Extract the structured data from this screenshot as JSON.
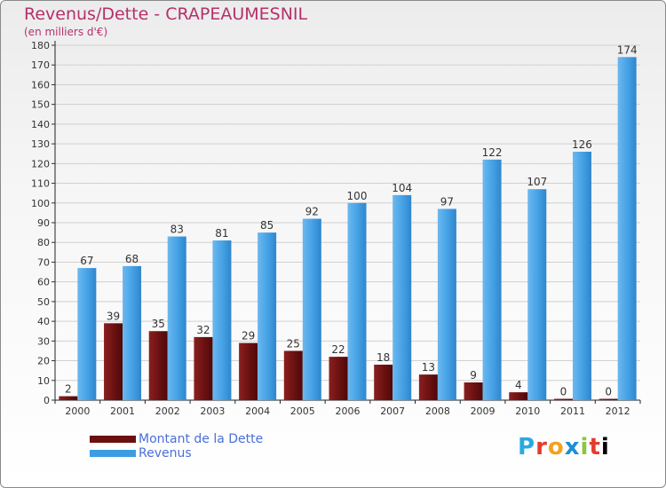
{
  "title": "Revenus/Dette - CRAPEAUMESNIL",
  "subtitle": "(en milliers d'€)",
  "logo_text": "Proxiti",
  "colors": {
    "dette": "#6b0f0f",
    "revenus": "#3d9de2",
    "title": "#b5306a",
    "legend_text": "#4a6fd8"
  },
  "legend": [
    {
      "label": "Montant de la Dette",
      "color": "#6b0f0f"
    },
    {
      "label": "Revenus",
      "color": "#3d9de2"
    }
  ],
  "chart_data": {
    "type": "bar",
    "title": "Revenus/Dette - CRAPEAUMESNIL",
    "subtitle": "(en milliers d'€)",
    "categories": [
      "2000",
      "2001",
      "2002",
      "2003",
      "2004",
      "2005",
      "2006",
      "2007",
      "2008",
      "2009",
      "2010",
      "2011",
      "2012"
    ],
    "series": [
      {
        "name": "Montant de la Dette",
        "values": [
          2,
          39,
          35,
          32,
          29,
          25,
          22,
          18,
          13,
          9,
          4,
          0,
          0
        ]
      },
      {
        "name": "Revenus",
        "values": [
          67,
          68,
          83,
          81,
          85,
          92,
          100,
          104,
          97,
          122,
          107,
          126,
          174
        ]
      }
    ],
    "ylim": [
      0,
      180
    ],
    "yticks": [
      0,
      10,
      20,
      30,
      40,
      50,
      60,
      70,
      80,
      90,
      100,
      110,
      120,
      130,
      140,
      150,
      160,
      170,
      180
    ],
    "grid": true,
    "legend_position": "bottom-left"
  }
}
